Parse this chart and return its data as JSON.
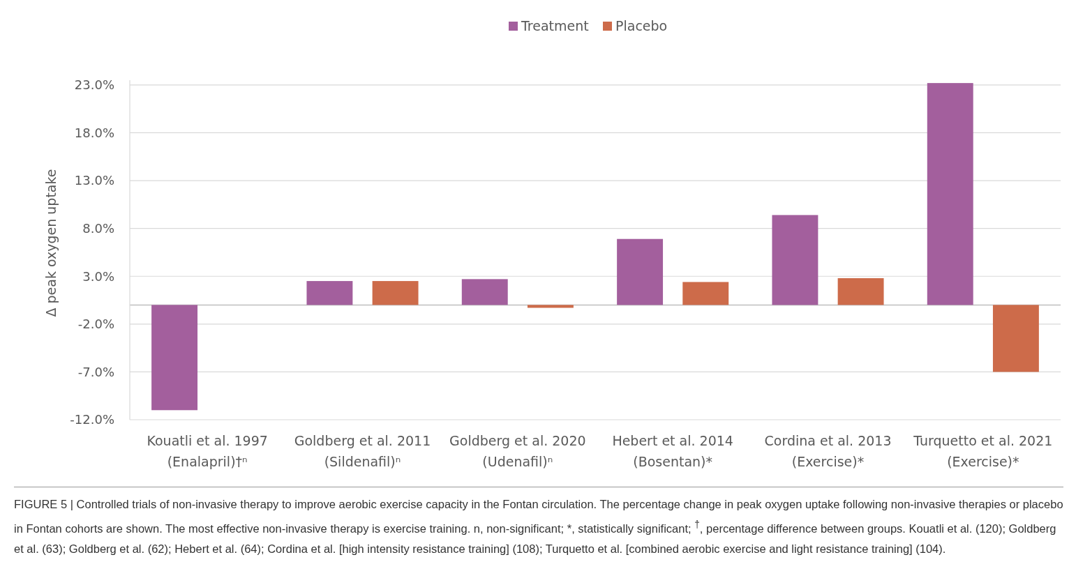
{
  "chart_data": {
    "type": "bar",
    "ylabel": "Δ peak oxygen uptake",
    "categories": [
      "Kouatli et al. 1997\n(Enalapril)†ⁿ",
      "Goldberg et al. 2011\n(Sildenafil)ⁿ",
      "Goldberg et al. 2020\n(Udenafil)ⁿ",
      "Hebert et al. 2014\n(Bosentan)*",
      "Cordina et al. 2013\n(Exercise)*",
      "Turquetto et al. 2021\n(Exercise)*"
    ],
    "series": [
      {
        "name": "Treatment",
        "color": "#a35f9d",
        "values": [
          -11.0,
          2.5,
          2.7,
          6.9,
          9.4,
          23.2
        ]
      },
      {
        "name": "Placebo",
        "color": "#cd6b4a",
        "values": [
          null,
          2.5,
          -0.3,
          2.4,
          2.8,
          -7.0
        ]
      }
    ],
    "ylim": [
      -12,
      23.5
    ],
    "yticks": [
      {
        "value": -12,
        "label": "-12.0%"
      },
      {
        "value": -7,
        "label": "-7.0%"
      },
      {
        "value": -2,
        "label": "-2.0%"
      },
      {
        "value": 3,
        "label": "3.0%"
      },
      {
        "value": 8,
        "label": "8.0%"
      },
      {
        "value": 13,
        "label": "13.0%"
      },
      {
        "value": 18,
        "label": "18.0%"
      },
      {
        "value": 23,
        "label": "23.0%"
      }
    ],
    "grid": "y",
    "legend": "top",
    "annotations": [
      "FIGURE 5 | Controlled trials of non-invasive therapy to improve aerobic exercise capacity in the Fontan circulation. The percentage change in peak oxygen uptake following non-invasive therapies or placebo in Fontan cohorts are shown. The most effective non-invasive therapy is exercise training. n, non-significant; *, statistically significant; $^{†}$, percentage difference between groups. Kouatli et al. (120); Goldberg et al. (63); Goldberg et al. (62); Hebert et al. (64); Cordina et al. [high intensity resistance training] (108); Turquetto et al. [combined aerobic exercise and light resistance training] (104)."
    ]
  }
}
